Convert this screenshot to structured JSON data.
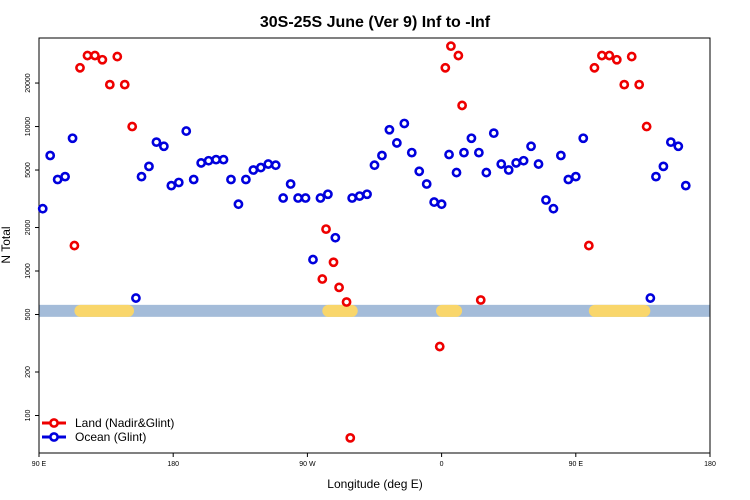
{
  "chart_data": {
    "type": "scatter",
    "title": "30S-25S June (Ver 9)   Inf to -Inf",
    "xlabel": "Longitude (deg E)",
    "ylabel": "N Total",
    "yscale": "log",
    "xlim": [
      90,
      450
    ],
    "ylim": [
      55,
      41000
    ],
    "x_ticks": [
      {
        "value": 90,
        "label": "90 E"
      },
      {
        "value": 162,
        "label": "180"
      },
      {
        "value": 234,
        "label": "90 W"
      },
      {
        "value": 306,
        "label": "0"
      },
      {
        "value": 378,
        "label": "90 E"
      },
      {
        "value": 450,
        "label": "180"
      }
    ],
    "y_ticks": [
      {
        "value": 100,
        "label": "100"
      },
      {
        "value": 200,
        "label": "200"
      },
      {
        "value": 500,
        "label": "500"
      },
      {
        "value": 1000,
        "label": "1000"
      },
      {
        "value": 2000,
        "label": "2000"
      },
      {
        "value": 5000,
        "label": "5000"
      },
      {
        "value": 10000,
        "label": "10000"
      },
      {
        "value": 20000,
        "label": "20000"
      }
    ],
    "band": {
      "y": 530,
      "color": "#a4bcd9",
      "land_color": "#f9d66b",
      "land_segments": [
        [
          109,
          141
        ],
        [
          242,
          261
        ],
        [
          303,
          317
        ],
        [
          385,
          418
        ]
      ]
    },
    "legend": {
      "position": "bottom-left",
      "entries": [
        {
          "label": "Land (Nadir&Glint)",
          "color": "#ee0000"
        },
        {
          "label": "Ocean (Glint)",
          "color": "#0000dd"
        }
      ]
    },
    "series": [
      {
        "name": "Land (Nadir&Glint)",
        "color": "#ee0000",
        "points": [
          [
            109,
            1500
          ],
          [
            112,
            25500
          ],
          [
            116,
            31000
          ],
          [
            120,
            31000
          ],
          [
            124,
            29000
          ],
          [
            128,
            19500
          ],
          [
            132,
            30500
          ],
          [
            136,
            19500
          ],
          [
            140,
            10000
          ],
          [
            242,
            880
          ],
          [
            244,
            1950
          ],
          [
            248,
            1150
          ],
          [
            251,
            770
          ],
          [
            255,
            610
          ],
          [
            257,
            70
          ],
          [
            305,
            300
          ],
          [
            308,
            25500
          ],
          [
            311,
            36000
          ],
          [
            315,
            31000
          ],
          [
            317,
            14000
          ],
          [
            327,
            630
          ],
          [
            385,
            1500
          ],
          [
            388,
            25500
          ],
          [
            392,
            31000
          ],
          [
            396,
            31000
          ],
          [
            400,
            29000
          ],
          [
            404,
            19500
          ],
          [
            408,
            30500
          ],
          [
            412,
            19500
          ],
          [
            416,
            10000
          ]
        ]
      },
      {
        "name": "Ocean (Glint)",
        "color": "#0000dd",
        "points": [
          [
            92,
            2700
          ],
          [
            96,
            6300
          ],
          [
            100,
            4300
          ],
          [
            104,
            4500
          ],
          [
            108,
            8300
          ],
          [
            142,
            650
          ],
          [
            145,
            4500
          ],
          [
            149,
            5300
          ],
          [
            153,
            7800
          ],
          [
            157,
            7300
          ],
          [
            161,
            3900
          ],
          [
            165,
            4100
          ],
          [
            169,
            9300
          ],
          [
            173,
            4300
          ],
          [
            177,
            5600
          ],
          [
            181,
            5800
          ],
          [
            185,
            5900
          ],
          [
            189,
            5900
          ],
          [
            193,
            4300
          ],
          [
            197,
            2900
          ],
          [
            201,
            4300
          ],
          [
            205,
            5000
          ],
          [
            209,
            5200
          ],
          [
            213,
            5500
          ],
          [
            217,
            5400
          ],
          [
            221,
            3200
          ],
          [
            225,
            4000
          ],
          [
            229,
            3200
          ],
          [
            233,
            3200
          ],
          [
            237,
            1200
          ],
          [
            241,
            3200
          ],
          [
            245,
            3400
          ],
          [
            249,
            1700
          ],
          [
            258,
            3200
          ],
          [
            262,
            3300
          ],
          [
            266,
            3400
          ],
          [
            270,
            5400
          ],
          [
            274,
            6300
          ],
          [
            278,
            9500
          ],
          [
            282,
            7700
          ],
          [
            286,
            10500
          ],
          [
            290,
            6600
          ],
          [
            294,
            4900
          ],
          [
            298,
            4000
          ],
          [
            302,
            3000
          ],
          [
            306,
            2900
          ],
          [
            310,
            6400
          ],
          [
            314,
            4800
          ],
          [
            318,
            6600
          ],
          [
            322,
            8300
          ],
          [
            326,
            6600
          ],
          [
            330,
            4800
          ],
          [
            334,
            9000
          ],
          [
            338,
            5500
          ],
          [
            342,
            5000
          ],
          [
            346,
            5600
          ],
          [
            350,
            5800
          ],
          [
            354,
            7300
          ],
          [
            358,
            5500
          ],
          [
            362,
            3100
          ],
          [
            366,
            2700
          ],
          [
            370,
            6300
          ],
          [
            374,
            4300
          ],
          [
            378,
            4500
          ],
          [
            382,
            8300
          ],
          [
            418,
            650
          ],
          [
            421,
            4500
          ],
          [
            425,
            5300
          ],
          [
            429,
            7800
          ],
          [
            433,
            7300
          ],
          [
            437,
            3900
          ]
        ]
      }
    ]
  }
}
